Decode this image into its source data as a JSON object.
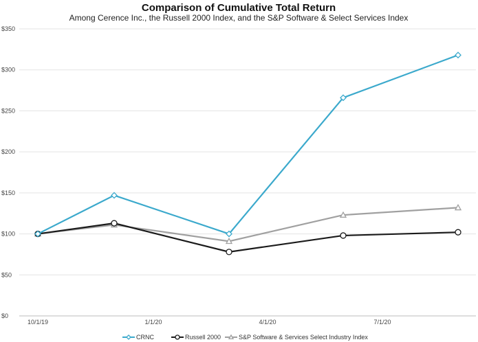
{
  "chart_data": {
    "type": "line",
    "title": "Comparison of Cumulative Total Return",
    "subtitle": "Among Cerence Inc., the Russell 2000 Index, and the S&P Software & Select Services Index",
    "x_tick_labels": [
      "10/1/19",
      "1/1/20",
      "4/1/20",
      "7/1/20"
    ],
    "y_tick_labels": [
      "$0",
      "$50",
      "$100",
      "$150",
      "$200",
      "$250",
      "$300",
      "$350"
    ],
    "ylim": [
      0,
      350
    ],
    "grid": true,
    "legend_position": "bottom",
    "series": [
      {
        "name": "CRNC",
        "color": "#3ba9cc",
        "marker": "diamond",
        "values": [
          100,
          147,
          100,
          266,
          318
        ]
      },
      {
        "name": "Russell 2000",
        "color": "#1a1a1a",
        "marker": "circle",
        "values": [
          100,
          113,
          78,
          98,
          102
        ]
      },
      {
        "name": "S&P Software & Services Select Industry Index",
        "color": "#a0a0a0",
        "marker": "triangle",
        "values": [
          100,
          111,
          91,
          123,
          132
        ]
      }
    ]
  }
}
